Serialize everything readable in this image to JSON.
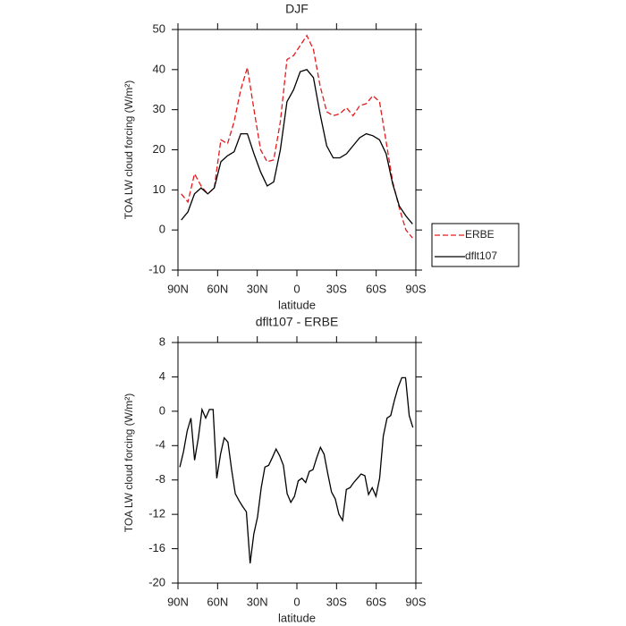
{
  "chart_data": [
    {
      "type": "line",
      "title": "DJF",
      "xlabel": "latitude",
      "ylabel": "TOA LW cloud forcing (W/m²)",
      "x": [
        87.5,
        82.5,
        77.5,
        72.5,
        67.5,
        62.5,
        57.5,
        52.5,
        47.5,
        42.5,
        37.5,
        32.5,
        27.5,
        22.5,
        17.5,
        12.5,
        7.5,
        2.5,
        -2.5,
        -7.5,
        -12.5,
        -17.5,
        -22.5,
        -27.5,
        -32.5,
        -37.5,
        -42.5,
        -47.5,
        -52.5,
        -57.5,
        -62.5,
        -67.5,
        -72.5,
        -77.5,
        -82.5,
        -87.5
      ],
      "series": [
        {
          "name": "ERBE",
          "color": "#e41a1c",
          "dash": true,
          "values": [
            9,
            7,
            14,
            11,
            9,
            10.5,
            22.5,
            21.5,
            27,
            35,
            40.5,
            30,
            20,
            17,
            17.5,
            27,
            42.5,
            43.5,
            46,
            48.5,
            45,
            36,
            29.5,
            28.5,
            29,
            30.5,
            28.5,
            31,
            31.5,
            33.5,
            32,
            22,
            12,
            5.5,
            0,
            -2
          ]
        },
        {
          "name": "dflt107",
          "color": "#000000",
          "dash": false,
          "values": [
            2.5,
            4.5,
            9,
            10.5,
            9,
            10.5,
            17,
            18.5,
            19.5,
            24,
            24,
            19,
            14.5,
            11,
            12,
            20,
            32,
            35,
            39.5,
            40,
            38,
            29,
            21,
            18,
            18,
            19,
            21,
            23,
            24,
            23.5,
            22.5,
            19,
            11.5,
            6,
            3.5,
            1.5
          ]
        }
      ],
      "xlim": [
        90,
        -90
      ],
      "xticks": [
        {
          "value": 90,
          "label": "90N"
        },
        {
          "value": 60,
          "label": "60N"
        },
        {
          "value": 30,
          "label": "30N"
        },
        0,
        {
          "value": -30,
          "label": "30S"
        },
        {
          "value": -60,
          "label": "60S"
        },
        {
          "value": -90,
          "label": "90S"
        }
      ],
      "ylim": [
        -10,
        50
      ],
      "yticks": [
        -10,
        0,
        10,
        20,
        30,
        40,
        50
      ],
      "legend": "right"
    },
    {
      "type": "line",
      "title": "dflt107 - ERBE",
      "xlabel": "latitude",
      "ylabel": "TOA LW cloud forcing (W/m²)",
      "x": [
        88.6,
        85.8,
        83.0,
        80.2,
        77.4,
        74.6,
        71.8,
        69.0,
        66.2,
        63.4,
        60.6,
        57.8,
        55.0,
        52.2,
        49.4,
        46.6,
        43.8,
        41.0,
        38.2,
        35.4,
        32.6,
        29.8,
        27.0,
        24.2,
        21.4,
        18.6,
        15.8,
        13.0,
        10.2,
        7.4,
        4.6,
        1.8,
        -1.0,
        -3.8,
        -6.6,
        -9.4,
        -12.2,
        -15.0,
        -17.8,
        -20.6,
        -23.4,
        -26.2,
        -29.0,
        -31.8,
        -34.6,
        -37.4,
        -40.2,
        -43.0,
        -45.8,
        -48.6,
        -51.4,
        -54.2,
        -57.0,
        -59.8,
        -62.6,
        -65.4,
        -68.2,
        -71.0,
        -73.8,
        -76.6,
        -79.4,
        -82.2,
        -85.0,
        -87.8
      ],
      "values": [
        -6.5,
        -4.7,
        -2.3,
        -0.8,
        -5.7,
        -3.1,
        0.2,
        -0.8,
        0.2,
        0.2,
        -7.8,
        -5,
        -3.1,
        -3.6,
        -6.8,
        -9.6,
        -10.4,
        -11.1,
        -11.7,
        -17.7,
        -14.3,
        -12.3,
        -8.9,
        -6.5,
        -6.3,
        -5.4,
        -4.4,
        -5.2,
        -6.3,
        -9.6,
        -10.6,
        -9.9,
        -8.1,
        -7.8,
        -8.3,
        -7,
        -6.8,
        -5.4,
        -4.2,
        -5,
        -7.3,
        -9.4,
        -10.2,
        -12,
        -12.7,
        -9.1,
        -8.9,
        -8.3,
        -7.8,
        -7.3,
        -7.5,
        -9.7,
        -8.9,
        -9.9,
        -7.8,
        -2.9,
        -0.8,
        -0.5,
        1.3,
        2.8,
        3.9,
        3.9,
        -0.5,
        -1.9
      ],
      "color": "#000000",
      "xlim": [
        90,
        -90
      ],
      "xticks": [
        {
          "value": 90,
          "label": "90N"
        },
        {
          "value": 60,
          "label": "60N"
        },
        {
          "value": 30,
          "label": "30N"
        },
        0,
        {
          "value": -30,
          "label": "30S"
        },
        {
          "value": -60,
          "label": "60S"
        },
        {
          "value": -90,
          "label": "90S"
        }
      ],
      "ylim": [
        -20,
        8
      ],
      "yticks": [
        -20,
        -16,
        -12,
        -8,
        -4,
        0,
        4,
        8
      ]
    }
  ]
}
